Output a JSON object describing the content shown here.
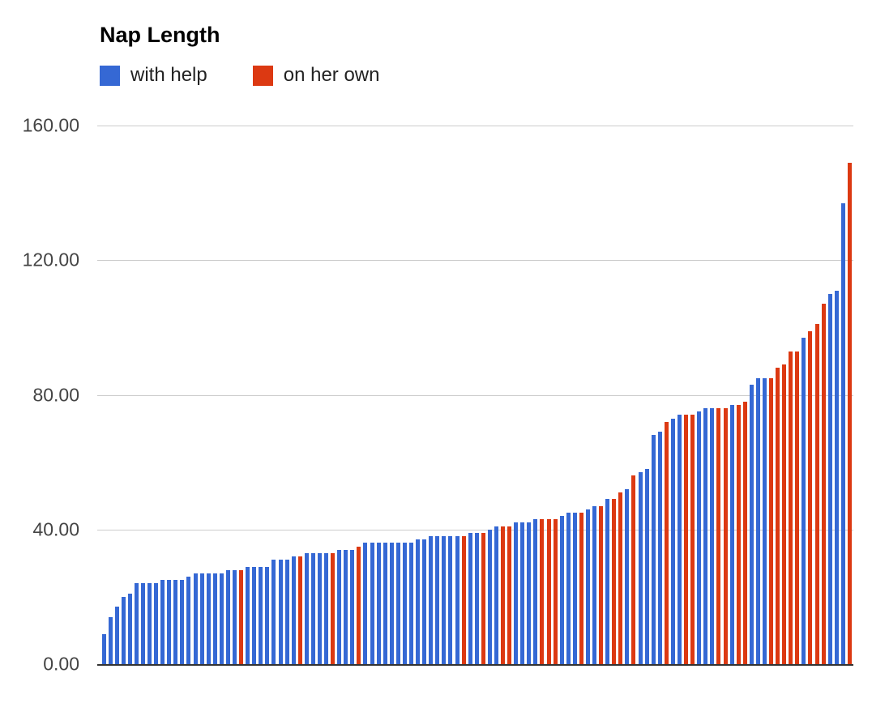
{
  "chart": {
    "title": "Nap Length",
    "legend": [
      {
        "label": "with help",
        "color": "#3568d4"
      },
      {
        "label": "on her own",
        "color": "#dc3912"
      }
    ],
    "y_axis": {
      "tick_labels": [
        "160.00",
        "120.00",
        "80.00",
        "40.00",
        "0.00"
      ],
      "min": 0,
      "max": 160
    }
  },
  "chart_data": {
    "type": "bar",
    "title": "Nap Length",
    "xlabel": "",
    "ylabel": "",
    "ylim": [
      0,
      160
    ],
    "y_tick_interval": 40,
    "y_tick_labels": [
      "160.00",
      "120.00",
      "80.00",
      "40.00",
      "0.00"
    ],
    "grid": true,
    "legend_position": "top-left",
    "sorted": "ascending",
    "bar_count": 115,
    "series_names": [
      "with help",
      "on her own"
    ],
    "series_colors": [
      "#3568d4",
      "#dc3912"
    ],
    "values": [
      9,
      14,
      17,
      20,
      21,
      24,
      24,
      24,
      24,
      25,
      25,
      25,
      25,
      26,
      27,
      27,
      27,
      27,
      27,
      28,
      28,
      28,
      29,
      29,
      29,
      29,
      31,
      31,
      31,
      32,
      32,
      33,
      33,
      33,
      33,
      33,
      34,
      34,
      34,
      35,
      36,
      36,
      36,
      36,
      36,
      36,
      36,
      36,
      37,
      37,
      38,
      38,
      38,
      38,
      38,
      38,
      39,
      39,
      39,
      40,
      41,
      41,
      41,
      42,
      42,
      42,
      43,
      43,
      43,
      43,
      44,
      45,
      45,
      45,
      46,
      47,
      47,
      49,
      49,
      51,
      52,
      56,
      57,
      58,
      68,
      69,
      72,
      73,
      74,
      74,
      74,
      75,
      76,
      76,
      76,
      76,
      77,
      77,
      78,
      83,
      85,
      85,
      85,
      88,
      89,
      93,
      93,
      97,
      99,
      101,
      107,
      110,
      111,
      137,
      149
    ],
    "series": [
      0,
      0,
      0,
      0,
      0,
      0,
      0,
      0,
      0,
      0,
      0,
      0,
      0,
      0,
      0,
      0,
      0,
      0,
      0,
      0,
      0,
      1,
      0,
      0,
      0,
      0,
      0,
      0,
      0,
      0,
      1,
      0,
      0,
      0,
      0,
      1,
      0,
      0,
      0,
      1,
      0,
      0,
      0,
      0,
      0,
      0,
      0,
      0,
      0,
      0,
      0,
      0,
      0,
      0,
      0,
      1,
      0,
      0,
      1,
      0,
      0,
      1,
      1,
      0,
      0,
      0,
      0,
      1,
      1,
      1,
      0,
      0,
      0,
      1,
      0,
      0,
      1,
      0,
      1,
      1,
      0,
      1,
      0,
      0,
      0,
      0,
      1,
      0,
      0,
      1,
      1,
      0,
      0,
      0,
      1,
      1,
      0,
      1,
      1,
      0,
      0,
      0,
      1,
      1,
      1,
      1,
      1,
      0,
      1,
      1,
      1,
      0,
      0,
      0,
      1
    ]
  }
}
